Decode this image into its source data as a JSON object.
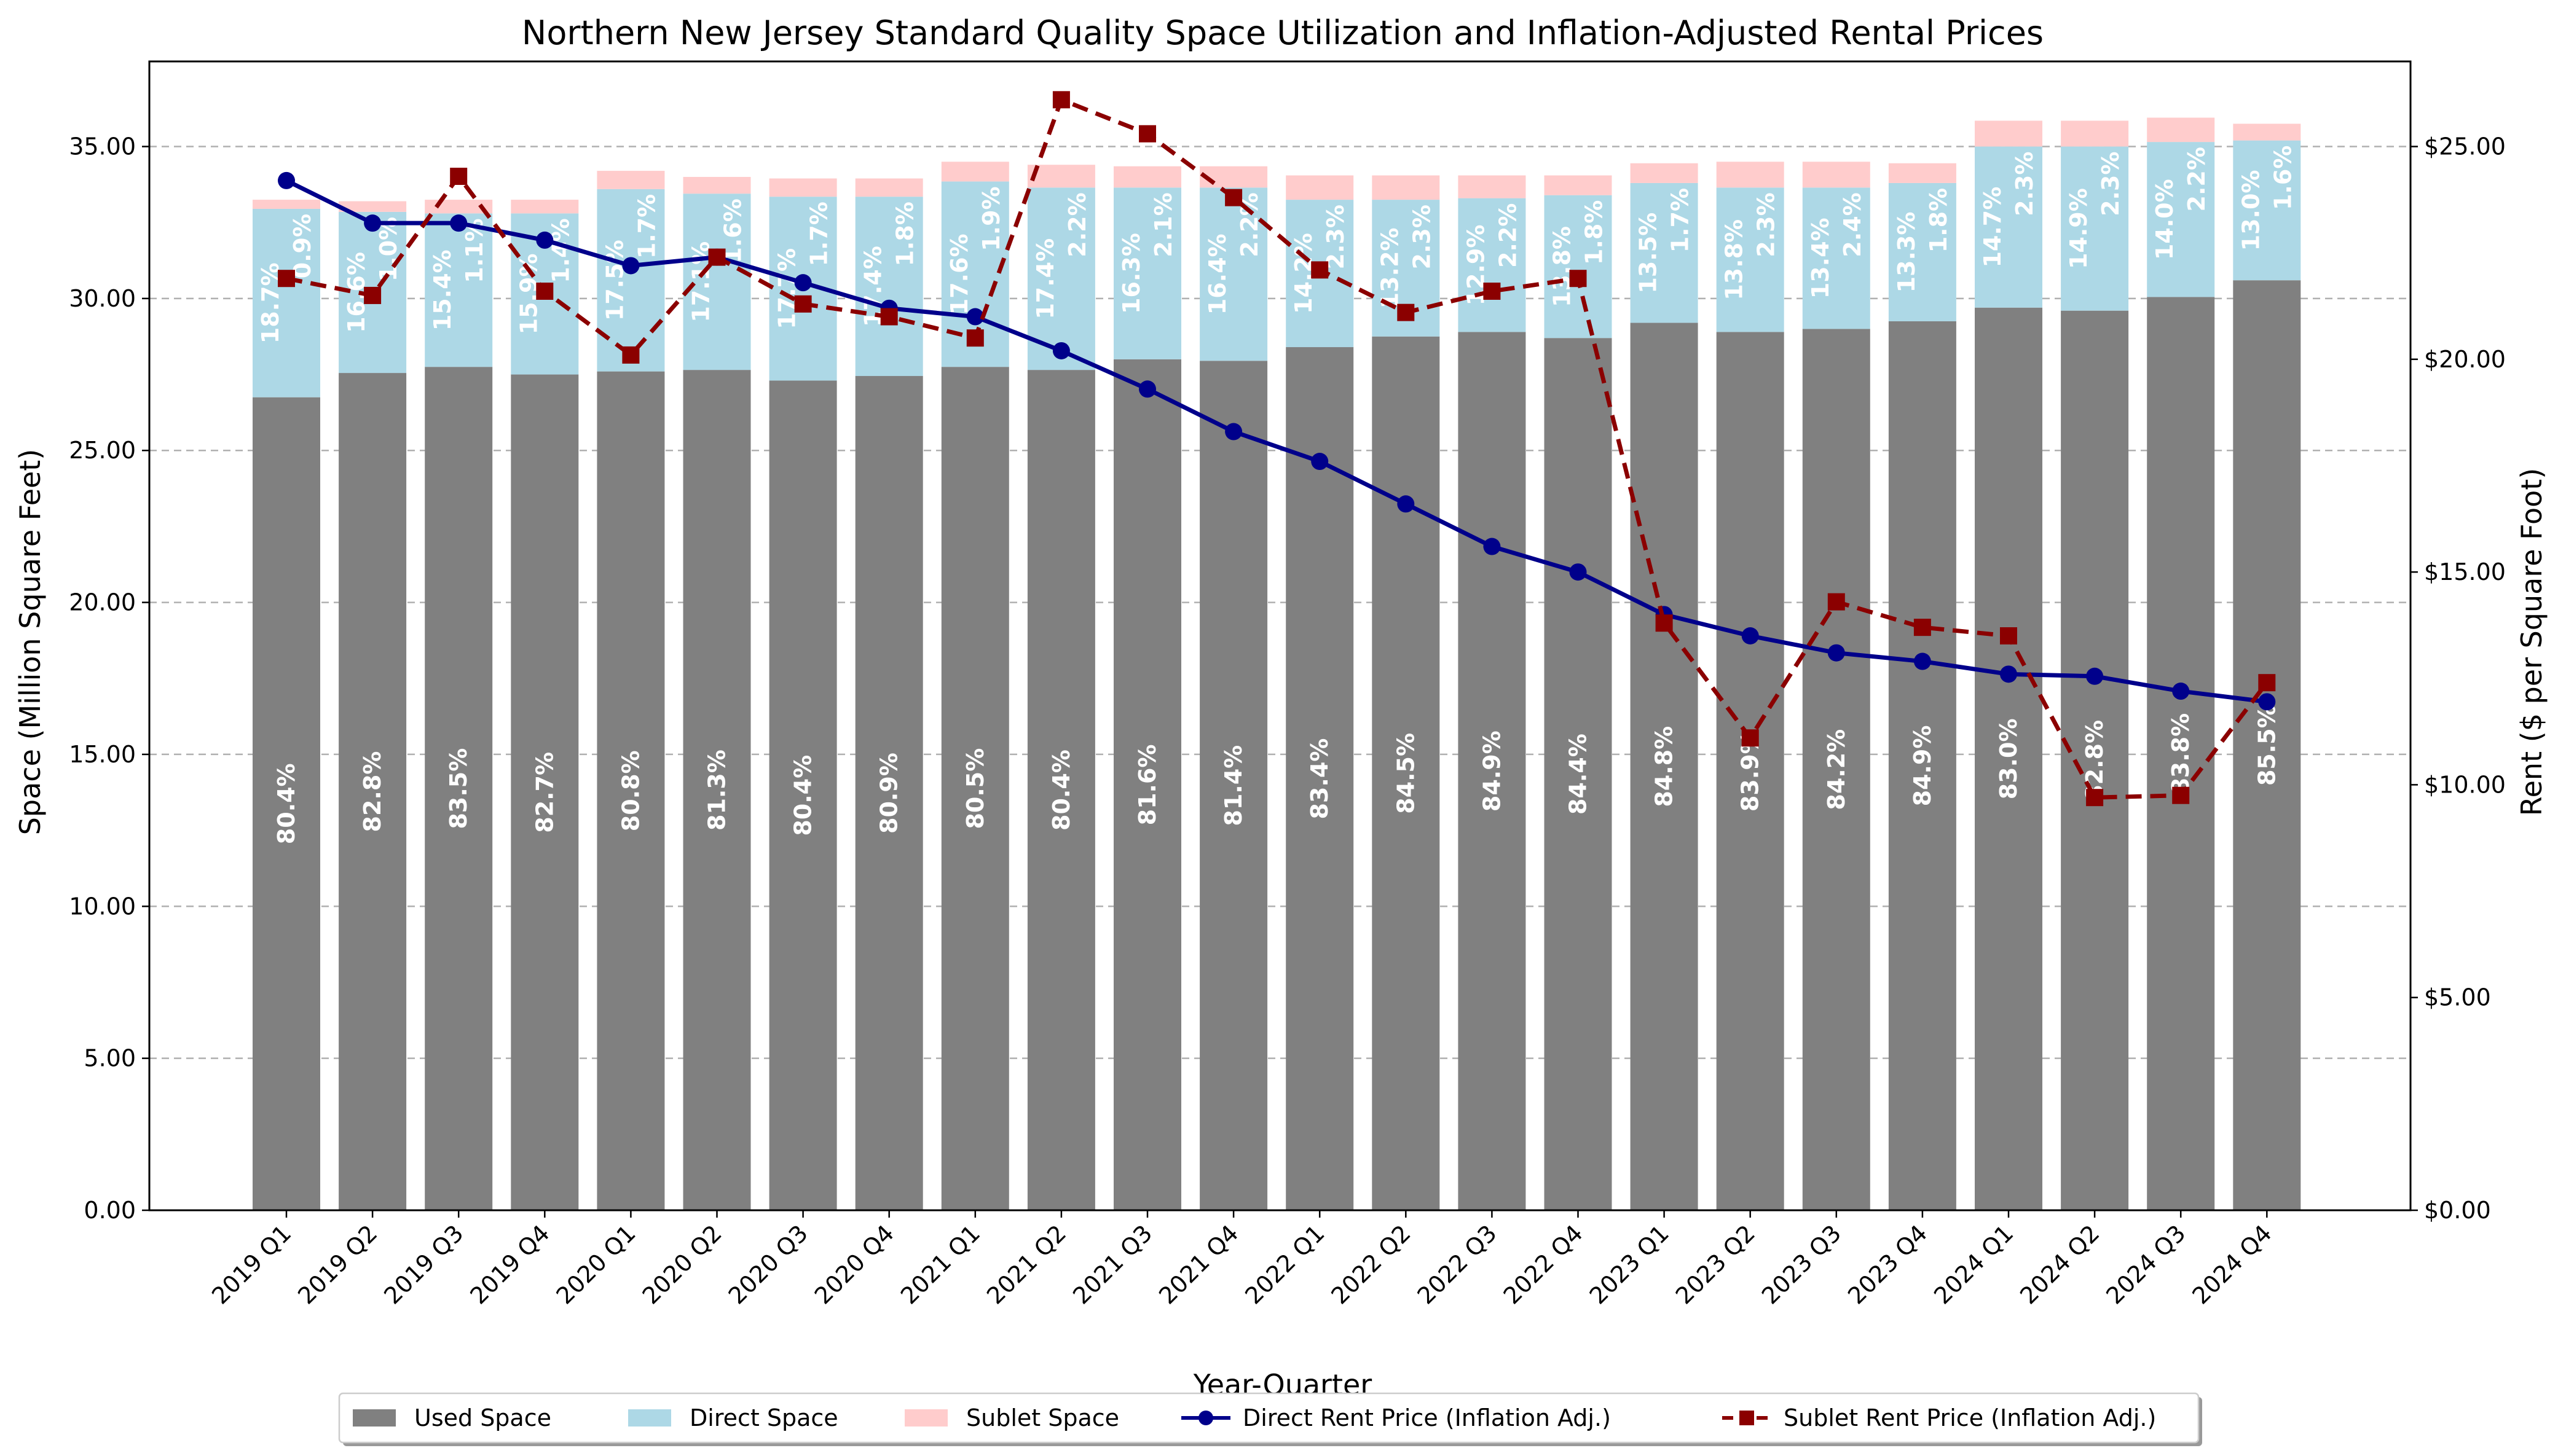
{
  "chart_data": {
    "type": "bar",
    "title": "Northern New Jersey Standard Quality Space Utilization and Inflation-Adjusted Rental Prices",
    "xlabel": "Year-Quarter",
    "ylabel_left": "Space (Million Square Feet)",
    "ylabel_right": "Rent ($ per Square Foot)",
    "ylim_left": [
      0,
      37.8
    ],
    "ylim_right": [
      0,
      27.0
    ],
    "yticks_left": [
      "0.00",
      "5.00",
      "10.00",
      "15.00",
      "20.00",
      "25.00",
      "30.00",
      "35.00"
    ],
    "yticks_right": [
      "$0.00",
      "$5.00",
      "$10.00",
      "$15.00",
      "$20.00",
      "$25.00"
    ],
    "grid": "horizontal dashed",
    "legend_position": "bottom-center",
    "categories": [
      "2019 Q1",
      "2019 Q2",
      "2019 Q3",
      "2019 Q4",
      "2020 Q1",
      "2020 Q2",
      "2020 Q3",
      "2020 Q4",
      "2021 Q1",
      "2021 Q2",
      "2021 Q3",
      "2021 Q4",
      "2022 Q1",
      "2022 Q2",
      "2022 Q3",
      "2022 Q4",
      "2023 Q1",
      "2023 Q2",
      "2023 Q3",
      "2023 Q4",
      "2024 Q1",
      "2024 Q2",
      "2024 Q3",
      "2024 Q4"
    ],
    "series": [
      {
        "name": "Used Space",
        "kind": "bar",
        "color": "#808080",
        "values": [
          26.75,
          27.55,
          27.75,
          27.5,
          27.6,
          27.65,
          27.3,
          27.45,
          27.75,
          27.65,
          28.0,
          27.95,
          28.4,
          28.75,
          28.9,
          28.7,
          29.2,
          28.9,
          29.0,
          29.25,
          29.7,
          29.6,
          30.05,
          30.6
        ],
        "labels": [
          "80.4%",
          "82.8%",
          "83.5%",
          "82.7%",
          "80.8%",
          "81.3%",
          "80.4%",
          "80.9%",
          "80.5%",
          "80.4%",
          "81.6%",
          "81.4%",
          "83.4%",
          "84.5%",
          "84.9%",
          "84.4%",
          "84.8%",
          "83.9%",
          "84.2%",
          "84.9%",
          "83.0%",
          "82.8%",
          "83.8%",
          "85.5%"
        ]
      },
      {
        "name": "Direct Space",
        "kind": "bar",
        "color": "#add8e6",
        "values": [
          6.2,
          5.3,
          5.05,
          5.3,
          6.0,
          5.8,
          6.05,
          5.9,
          6.1,
          6.0,
          5.65,
          5.7,
          4.85,
          4.5,
          4.4,
          4.7,
          4.6,
          4.75,
          4.65,
          4.55,
          5.3,
          5.4,
          5.1,
          4.6
        ],
        "labels": [
          "18.7%",
          "16.6%",
          "15.4%",
          "15.9%",
          "17.5%",
          "17.1%",
          "17.7%",
          "17.4%",
          "17.6%",
          "17.4%",
          "16.3%",
          "16.4%",
          "14.2%",
          "13.2%",
          "12.9%",
          "13.8%",
          "13.5%",
          "13.8%",
          "13.4%",
          "13.3%",
          "14.7%",
          "14.9%",
          "14.0%",
          "13.0%"
        ]
      },
      {
        "name": "Sublet Space",
        "kind": "bar",
        "color": "#ffcccc",
        "values": [
          0.3,
          0.35,
          0.45,
          0.45,
          0.6,
          0.55,
          0.6,
          0.6,
          0.65,
          0.75,
          0.7,
          0.7,
          0.8,
          0.8,
          0.75,
          0.65,
          0.65,
          0.85,
          0.85,
          0.65,
          0.85,
          0.85,
          0.8,
          0.55
        ],
        "labels": [
          "0.9%",
          "1.0%",
          "1.1%",
          "1.4%",
          "1.7%",
          "1.6%",
          "1.7%",
          "1.8%",
          "1.9%",
          "2.2%",
          "2.1%",
          "2.2%",
          "2.3%",
          "2.3%",
          "2.2%",
          "1.8%",
          "1.7%",
          "2.3%",
          "2.4%",
          "1.8%",
          "2.3%",
          "2.3%",
          "2.2%",
          "1.6%"
        ]
      },
      {
        "name": "Direct Rent Price (Inflation Adj.)",
        "kind": "line",
        "color": "#00008b",
        "axis": "right",
        "values": [
          24.2,
          23.2,
          23.2,
          22.8,
          22.2,
          22.4,
          21.8,
          21.2,
          21.0,
          20.2,
          19.3,
          18.3,
          17.6,
          16.6,
          15.6,
          15.0,
          14.0,
          13.5,
          13.1,
          12.9,
          12.6,
          12.55,
          12.2,
          11.95
        ]
      },
      {
        "name": "Sublet Rent Price (Inflation Adj.)",
        "kind": "line",
        "color": "#8b0000",
        "axis": "right",
        "values": [
          21.9,
          21.5,
          24.3,
          21.6,
          20.1,
          22.4,
          21.3,
          21.0,
          20.5,
          26.1,
          25.3,
          23.8,
          22.1,
          21.1,
          21.6,
          21.9,
          13.8,
          11.1,
          14.3,
          13.7,
          13.5,
          9.7,
          9.75,
          12.4
        ]
      }
    ]
  }
}
